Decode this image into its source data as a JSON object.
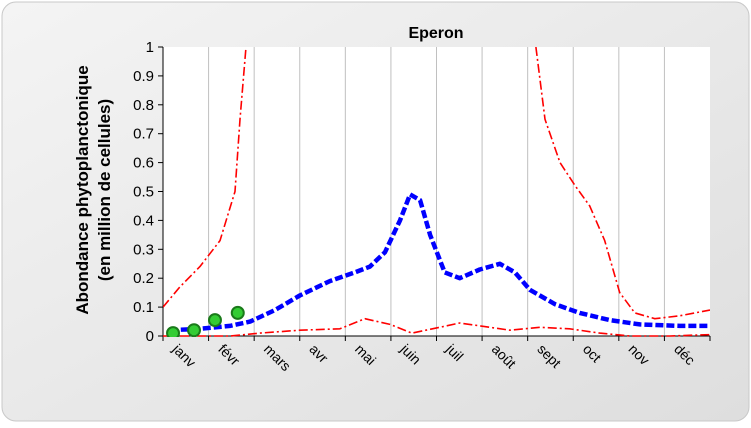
{
  "chart_data": {
    "type": "line",
    "title": "Eperon",
    "ylabel": [
      "Abondance phytoplanctonique",
      "(en million de cellules)"
    ],
    "categories": [
      "janv",
      "févr",
      "mars",
      "avr",
      "mai",
      "juin",
      "juil",
      "août",
      "sept",
      "oct",
      "nov",
      "déc"
    ],
    "xlim": [
      0,
      12
    ],
    "ylim": [
      0,
      1
    ],
    "yticks": [
      0,
      0.1,
      0.2,
      0.3,
      0.4,
      0.5,
      0.6,
      0.7,
      0.8,
      0.9,
      1
    ],
    "grid": "vertical",
    "series": [
      {
        "color": "#ff0000",
        "style": "dashdot",
        "x": [
          0,
          0.37,
          0.81,
          1.25,
          1.58,
          1.69,
          1.82,
          null,
          8.18,
          8.38,
          8.71,
          9.04,
          9.36,
          9.69,
          10.02,
          10.35,
          10.79,
          11.34,
          12
        ],
        "values": [
          0.1,
          0.17,
          0.24,
          0.33,
          0.5,
          0.75,
          1.0,
          null,
          1.0,
          0.75,
          0.6,
          0.52,
          0.45,
          0.33,
          0.15,
          0.08,
          0.06,
          0.07,
          0.09
        ]
      },
      {
        "color": "#ff0000",
        "style": "dashdot",
        "x": [
          0,
          1.47,
          2.13,
          3.0,
          3.88,
          4.43,
          4.98,
          5.46,
          6.07,
          6.51,
          7.17,
          7.61,
          8.27,
          8.92,
          9.58,
          10.24,
          11.12,
          12
        ],
        "values": [
          0,
          0,
          0.01,
          0.02,
          0.025,
          0.06,
          0.04,
          0.01,
          0.03,
          0.045,
          0.03,
          0.02,
          0.03,
          0.025,
          0.01,
          0,
          0,
          0.005
        ]
      },
      {
        "color": "#0000ff",
        "style": "dashed",
        "x": [
          0.15,
          0.81,
          1.47,
          1.91,
          2.46,
          3.0,
          3.66,
          4.21,
          4.54,
          4.87,
          5.2,
          5.42,
          5.64,
          5.86,
          6.18,
          6.51,
          6.95,
          7.39,
          7.72,
          8.05,
          8.6,
          9.14,
          9.8,
          10.46,
          11.34,
          12.0
        ],
        "values": [
          0.02,
          0.025,
          0.035,
          0.05,
          0.09,
          0.14,
          0.19,
          0.22,
          0.24,
          0.29,
          0.4,
          0.49,
          0.47,
          0.35,
          0.22,
          0.2,
          0.23,
          0.25,
          0.22,
          0.16,
          0.11,
          0.08,
          0.055,
          0.04,
          0.035,
          0.035
        ]
      },
      {
        "color": "#33cc33",
        "style": "markers",
        "x": [
          0.22,
          0.68,
          1.14,
          1.64
        ],
        "values": [
          0.01,
          0.02,
          0.055,
          0.08
        ]
      }
    ]
  }
}
